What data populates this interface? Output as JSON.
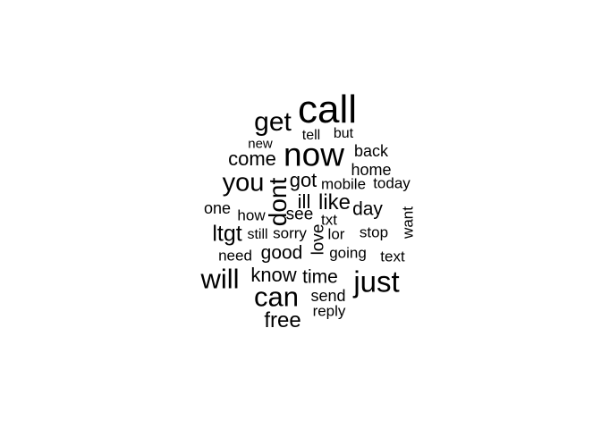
{
  "wordcloud": {
    "text_color": "#000000",
    "background": "#ffffff",
    "words": {
      "call": "call",
      "now": "now",
      "get": "get",
      "can": "can",
      "just": "just",
      "will": "will",
      "you": "you",
      "dont": "dont",
      "ltgt": "ltgt",
      "free": "free",
      "know": "know",
      "come": "come",
      "got": "got",
      "like": "like",
      "good": "good",
      "time": "time",
      "ill": "ill",
      "send": "send",
      "day": "day",
      "love": "love",
      "home": "home",
      "back": "back",
      "mobile": "mobile",
      "today": "today",
      "see": "see",
      "one": "one",
      "how": "how",
      "txt": "txt",
      "still": "still",
      "sorry": "sorry",
      "lor": "lor",
      "stop": "stop",
      "want": "want",
      "need": "need",
      "going": "going",
      "text": "text",
      "reply": "reply",
      "tell": "tell",
      "but": "but",
      "new": "new"
    }
  }
}
